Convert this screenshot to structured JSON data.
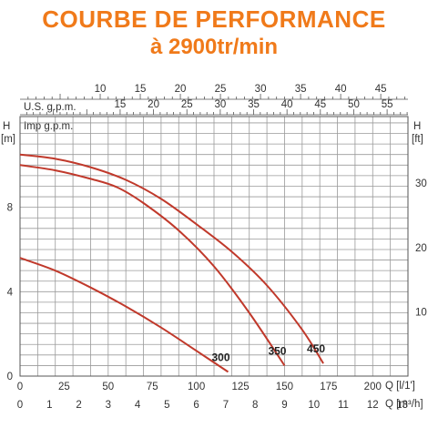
{
  "title": "COURBE DE PERFORMANCE",
  "subtitle": "à 2900tr/min",
  "colors": {
    "title": "#f07a1a",
    "curve": "#c0392b",
    "grid": "#9a9a9a"
  },
  "chart_data": {
    "type": "line",
    "title": "COURBE DE PERFORMANCE",
    "subtitle": "à 2900tr/min",
    "x_primary_label": "Q [l/1']",
    "x_secondary_label": "Q [m³/h]",
    "y_left_label_top": "H",
    "y_left_unit": "[m]",
    "y_right_label_top": "H",
    "y_right_unit": "[ft]",
    "usgpm_label": "U.S. g.p.m.",
    "impgpm_label": "Imp g.p.m.",
    "xlim": [
      0,
      220
    ],
    "ylim": [
      0,
      12.3
    ],
    "x_ticks_lpm": [
      0,
      25,
      50,
      75,
      100,
      125,
      150,
      175,
      200
    ],
    "x_ticks_m3h": [
      0,
      1,
      2,
      3,
      4,
      5,
      6,
      7,
      8,
      9,
      10,
      11,
      12,
      13
    ],
    "y_ticks_m": [
      0,
      4,
      8
    ],
    "y_ticks_ft": [
      10,
      20,
      30
    ],
    "usgpm_ticks": [
      15,
      20,
      25,
      30,
      35,
      40,
      45,
      50,
      55
    ],
    "impgpm_ticks": [
      10,
      15,
      20,
      25,
      30,
      35,
      40,
      45
    ],
    "grid": true,
    "series": [
      {
        "name": "300",
        "x": [
          0,
          20,
          40,
          60,
          80,
          100,
          118
        ],
        "y": [
          5.6,
          5.0,
          4.2,
          3.3,
          2.3,
          1.2,
          0.2
        ]
      },
      {
        "name": "350",
        "x": [
          0,
          20,
          40,
          55,
          70,
          90,
          110,
          130,
          150
        ],
        "y": [
          10.0,
          9.75,
          9.35,
          8.95,
          8.2,
          6.9,
          5.2,
          3.0,
          0.5
        ]
      },
      {
        "name": "450",
        "x": [
          0,
          20,
          40,
          60,
          80,
          100,
          120,
          140,
          160,
          172
        ],
        "y": [
          10.5,
          10.3,
          9.9,
          9.3,
          8.4,
          7.2,
          5.9,
          4.3,
          2.2,
          0.6
        ]
      }
    ]
  }
}
